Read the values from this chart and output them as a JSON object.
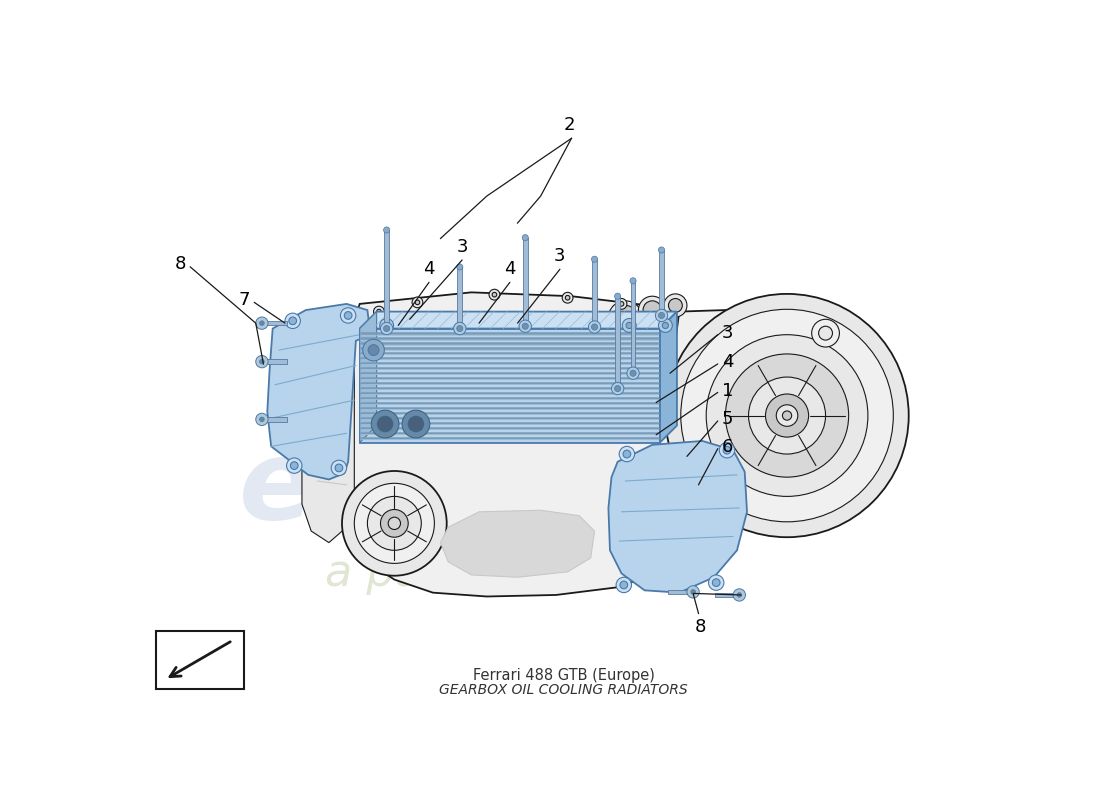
{
  "title": "Ferrari 488 GTB (Europe)",
  "subtitle": "GEARBOX OIL COOLING RADIATORS",
  "bg_color": "#ffffff",
  "line_color": "#1a1a1a",
  "blue_light": "#b8d4ec",
  "blue_mid": "#8ab4d8",
  "blue_dark": "#6090b8",
  "blue_top": "#cce0f4",
  "gray_body": "#e8e8e8",
  "gray_dark": "#c8c8c8",
  "gray_mid": "#d8d8d8",
  "gray_light": "#f0f0f0",
  "stripe_dark": "#7a9ab8",
  "stripe_light": "#a0c0d8",
  "watermark1": "#c8d8e8",
  "watermark2": "#d0d8b8",
  "label_fs": 13,
  "lw_main": 1.3,
  "lw_thin": 0.8,
  "lw_leader": 0.9
}
